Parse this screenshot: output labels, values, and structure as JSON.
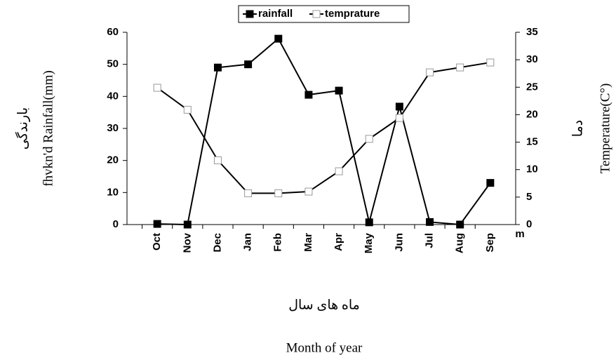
{
  "chart_data": {
    "type": "line",
    "categories": [
      "Oct",
      "Nov",
      "Dec",
      "Jan",
      "Feb",
      "Mar",
      "Apr",
      "May",
      "Jun",
      "Jul",
      "Aug",
      "Sep"
    ],
    "series": [
      {
        "name": "rainfall",
        "color": "#000000",
        "marker": "filled-square",
        "values": [
          0.2,
          0,
          49,
          50,
          58,
          40.5,
          41.8,
          0.7,
          36.8,
          0.8,
          0,
          13
        ]
      },
      {
        "name": "temprature",
        "color": "#000000",
        "marker": "open-square",
        "axis": "y2",
        "values": [
          24.9,
          20.9,
          11.7,
          5.7,
          5.7,
          6.0,
          9.7,
          15.6,
          19.4,
          27.7,
          28.6,
          29.5
        ]
      }
    ],
    "ylim": [
      0,
      60
    ],
    "yticks": [
      0,
      10,
      20,
      30,
      40,
      50,
      60
    ],
    "y2lim": [
      0,
      35
    ],
    "y2ticks": [
      0,
      5,
      10,
      15,
      20,
      25,
      30,
      35
    ],
    "ylabel": "fhvkn'd Rainfall(mm)",
    "ylabel_fa": "بارندگی",
    "y2label": "Temperature(C°)",
    "y2label_fa": "دما",
    "xlabel": "Month of year",
    "xlabel_fa": "ماه های سال",
    "annotation": "m",
    "legend": "top"
  }
}
